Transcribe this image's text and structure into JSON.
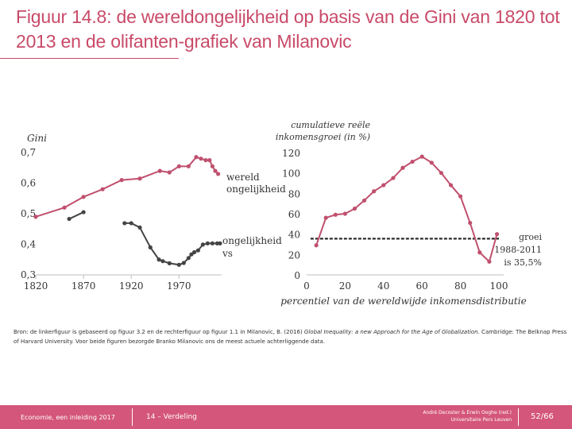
{
  "slide": {
    "title": "Figuur 14.8: de wereldongelijkheid op basis van de Gini van 1820 tot 2013 en de olifanten-grafiek van Milanovic",
    "source_prefix": "Bron: de linkerfiguur is gebaseerd op figuur 3.2 en de rechterfiguur op figuur 1.1 in Milanovic, B. (2016) ",
    "source_title": "Global Inequality: a new Approach for the Age of Globalization",
    "source_suffix": ". Cambridge: The Belknap Press of Harvard University. Voor beide figuren bezorgde Branko Milanovic ons de meest actuele achterliggende data."
  },
  "footer": {
    "book": "Economie, een inleiding 2017",
    "chapter": "14 – Verdeling",
    "authors_line1": "André Decoster & Erwin Ooghe (red.)",
    "authors_line2": "Universitaire Pers Leuven",
    "page": "52/66"
  },
  "colors": {
    "accent": "#c94a68",
    "world_line": "#c0506e",
    "within_line": "#444444",
    "footer_bg": "#d4567a"
  },
  "chart_data": [
    {
      "type": "line",
      "ylabel": "Gini",
      "ylim": [
        0.3,
        0.7
      ],
      "xlim": [
        1820,
        2013
      ],
      "yticks": [
        "0,3",
        "0,4",
        "0,5",
        "0,6",
        "0,7"
      ],
      "ytick_values": [
        0.3,
        0.4,
        0.5,
        0.6,
        0.7
      ],
      "xticks": [
        "1820",
        "1870",
        "1920",
        "1970"
      ],
      "xtick_values": [
        1820,
        1870,
        1920,
        1970
      ],
      "series": [
        {
          "name": "wereld ongelijkheid",
          "label_lines": [
            "wereld",
            "ongelijkheid"
          ],
          "color": "#c0506e",
          "x": [
            1820,
            1850,
            1870,
            1890,
            1910,
            1929,
            1950,
            1960,
            1970,
            1980,
            1988,
            1993,
            1998,
            2002,
            2005,
            2008,
            2011
          ],
          "y": [
            0.49,
            0.52,
            0.555,
            0.58,
            0.61,
            0.615,
            0.64,
            0.635,
            0.655,
            0.655,
            0.685,
            0.68,
            0.675,
            0.675,
            0.655,
            0.64,
            0.63
          ]
        },
        {
          "name": "ongelijkheid vs",
          "label_lines": [
            "ongelijkheid",
            "vs"
          ],
          "color": "#444444",
          "x": [
            1855,
            1870
          ],
          "y": [
            0.483,
            0.505
          ]
        },
        {
          "name": "",
          "color": "#444444",
          "x": [
            1913,
            1920,
            1929,
            1940,
            1949,
            1953,
            1960,
            1970,
            1975,
            1980,
            1983,
            1986,
            1990,
            1995,
            2000,
            2005,
            2010,
            2013
          ],
          "y": [
            0.469,
            0.469,
            0.455,
            0.39,
            0.35,
            0.345,
            0.338,
            0.333,
            0.339,
            0.355,
            0.367,
            0.374,
            0.38,
            0.399,
            0.403,
            0.403,
            0.403,
            0.403
          ]
        }
      ]
    },
    {
      "type": "line",
      "ylabel": "cumulatieve reële inkomensgroei (in %)",
      "ylabel_lines": [
        "cumulatieve reële",
        "inkomensgroei (in %)"
      ],
      "xlabel": "percentiel van de wereldwijde inkomensdistributie",
      "ylim": [
        0,
        120
      ],
      "xlim": [
        0,
        100
      ],
      "yticks": [
        "0",
        "20",
        "40",
        "60",
        "80",
        "100",
        "120"
      ],
      "ytick_values": [
        0,
        20,
        40,
        60,
        80,
        100,
        120
      ],
      "xticks": [
        "0",
        "20",
        "40",
        "60",
        "80",
        "100"
      ],
      "xtick_values": [
        0,
        20,
        40,
        60,
        80,
        100
      ],
      "series": [
        {
          "name": "",
          "color": "#c0506e",
          "x": [
            5,
            10,
            15,
            20,
            25,
            30,
            35,
            40,
            45,
            50,
            55,
            60,
            65,
            70,
            75,
            80,
            85,
            90,
            95,
            99
          ],
          "y": [
            29,
            56,
            59,
            60,
            65,
            73,
            82,
            88,
            95,
            105,
            111,
            116,
            110,
            100,
            88,
            77,
            51,
            22,
            13,
            40
          ]
        }
      ],
      "reference": {
        "value": 35.5,
        "style": "dashed",
        "label_lines": [
          "groei",
          "1988-2011",
          "is 35,5%"
        ]
      }
    }
  ]
}
